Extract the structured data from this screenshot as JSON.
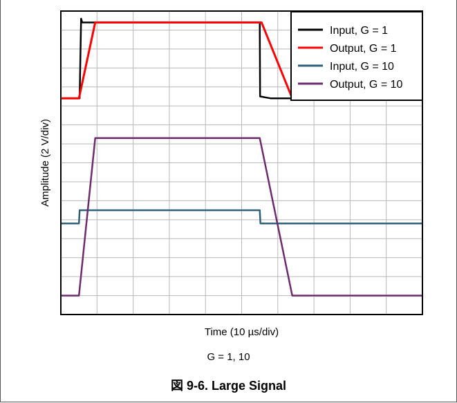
{
  "chart_data": {
    "type": "line",
    "xlabel": "Time (10 µs/div)",
    "ylabel": "Amplitude (2 V/div)",
    "x_divisions": 10,
    "y_divisions": 16,
    "grid": true,
    "legend_position": "top-right",
    "xlim": [
      0,
      100
    ],
    "ylim": [
      0,
      16
    ],
    "series": [
      {
        "name": "Input, G = 1",
        "color": "#000000",
        "points": [
          [
            0,
            11.4
          ],
          [
            5.2,
            11.4
          ],
          [
            5.6,
            15.6
          ],
          [
            5.9,
            15.4
          ],
          [
            10,
            15.4
          ],
          [
            50,
            15.4
          ],
          [
            55,
            15.4
          ],
          [
            55.1,
            11.5
          ],
          [
            58,
            11.4
          ],
          [
            100,
            11.4
          ]
        ]
      },
      {
        "name": "Output, G = 1",
        "color": "#ff0000",
        "points": [
          [
            0,
            11.4
          ],
          [
            5,
            11.4
          ],
          [
            9.5,
            15.4
          ],
          [
            55.5,
            15.4
          ],
          [
            64,
            11.4
          ],
          [
            100,
            11.4
          ]
        ]
      },
      {
        "name": "Input, G = 10",
        "color": "#2d5f78",
        "points": [
          [
            0,
            4.8
          ],
          [
            5,
            4.8
          ],
          [
            5.2,
            5.5
          ],
          [
            55,
            5.5
          ],
          [
            55.2,
            4.8
          ],
          [
            100,
            4.8
          ]
        ]
      },
      {
        "name": "Output, G = 10",
        "color": "#6d2a6e",
        "points": [
          [
            0,
            1.0
          ],
          [
            5,
            1.0
          ],
          [
            9.5,
            9.3
          ],
          [
            55,
            9.3
          ],
          [
            64,
            1.0
          ],
          [
            100,
            1.0
          ]
        ]
      }
    ]
  },
  "caption": {
    "subtitle": "G = 1, 10",
    "title": "図 9-6. Large Signal"
  }
}
